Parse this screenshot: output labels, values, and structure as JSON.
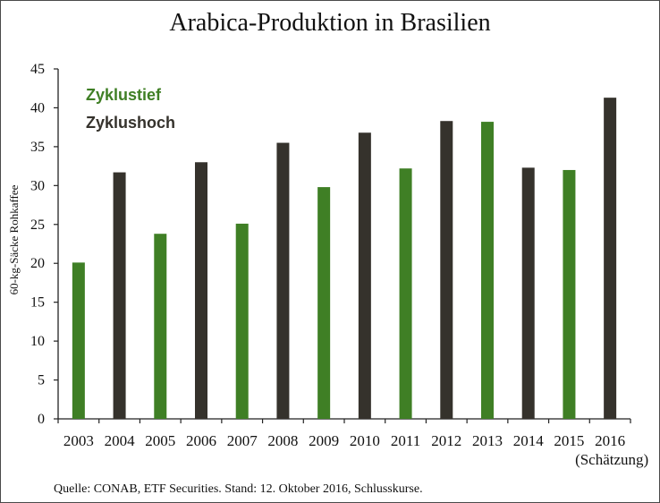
{
  "chart_data": {
    "type": "bar",
    "title": "Arabica-Produktion in Brasilien",
    "ylabel": "60-kg-Säcke Rohkaffee",
    "xlabel": "",
    "ylim": [
      0,
      45
    ],
    "yticks": [
      0,
      5,
      10,
      15,
      20,
      25,
      30,
      35,
      40,
      45
    ],
    "categories": [
      "2003",
      "2004",
      "2005",
      "2006",
      "2007",
      "2008",
      "2009",
      "2010",
      "2011",
      "2012",
      "2013",
      "2014",
      "2015",
      "2016"
    ],
    "values": [
      20.1,
      31.7,
      23.8,
      33.0,
      25.1,
      35.5,
      29.8,
      36.8,
      32.2,
      38.3,
      38.2,
      32.3,
      32.0,
      41.3
    ],
    "phase": [
      "low",
      "high",
      "low",
      "high",
      "low",
      "high",
      "low",
      "high",
      "low",
      "high",
      "low",
      "high",
      "low",
      "high"
    ],
    "category_note": "(Schätzung)",
    "legend": [
      {
        "key": "low",
        "label": "Zyklustief",
        "color": "#3f7f25"
      },
      {
        "key": "high",
        "label": "Zyklushoch",
        "color": "#35322c"
      }
    ],
    "grid": false,
    "legend_position": "top-left"
  },
  "source": "Quelle: CONAB, ETF Securities. Stand: 12. Oktober 2016, Schlusskurse."
}
